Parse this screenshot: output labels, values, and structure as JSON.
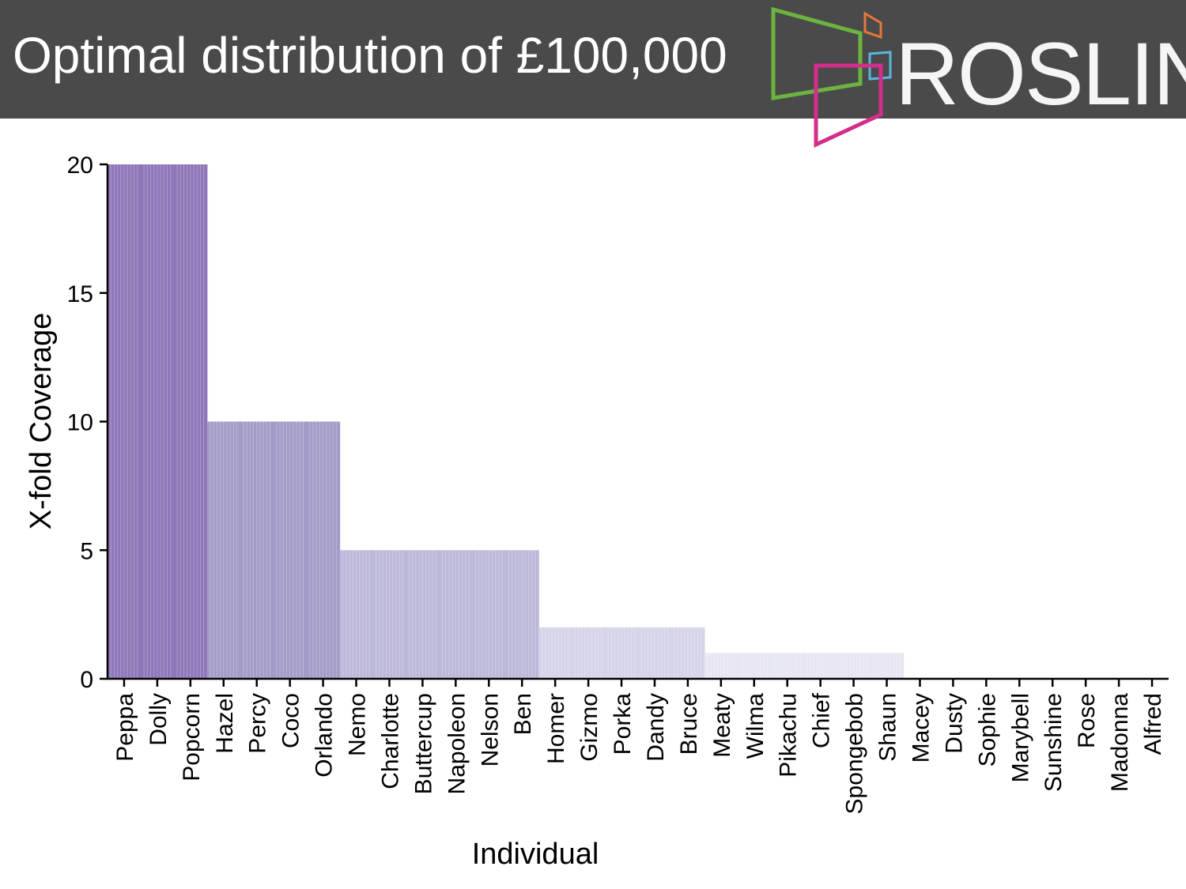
{
  "header": {
    "title": "Optimal distribution of £100,000",
    "logo_text": "ROSLIN"
  },
  "colors": {
    "header_bg": "#4a4a4a",
    "tier_20": "#8e77b8",
    "tier_10": "#a39cc8",
    "tier_5": "#bcb8da",
    "tier_2": "#d5d4ea",
    "tier_1": "#e7e6f3",
    "logo_green": "#6cb33f",
    "logo_orange": "#e8773a",
    "logo_blue": "#5bb6e3",
    "logo_magenta": "#d42e8a"
  },
  "chart_data": {
    "type": "bar",
    "title": "",
    "xlabel": "Individual",
    "ylabel": "X-fold Coverage",
    "ylim": [
      0,
      20
    ],
    "yticks": [
      0,
      5,
      10,
      15,
      20
    ],
    "grid": false,
    "categories": [
      "Peppa",
      "Dolly",
      "Popcorn",
      "Hazel",
      "Percy",
      "Coco",
      "Orlando",
      "Nemo",
      "Charlotte",
      "Buttercup",
      "Napoleon",
      "Nelson",
      "Ben",
      "Homer",
      "Gizmo",
      "Porka",
      "Dandy",
      "Bruce",
      "Meaty",
      "Wilma",
      "Pikachu",
      "Chief",
      "Spongebob",
      "Shaun",
      "Macey",
      "Dusty",
      "Sophie",
      "Marybell",
      "Sunshine",
      "Rose",
      "Madonna",
      "Alfred"
    ],
    "values": [
      20,
      20,
      20,
      10,
      10,
      10,
      10,
      5,
      5,
      5,
      5,
      5,
      5,
      2,
      2,
      2,
      2,
      2,
      1,
      1,
      1,
      1,
      1,
      1,
      0,
      0,
      0,
      0,
      0,
      0,
      0,
      0
    ]
  }
}
